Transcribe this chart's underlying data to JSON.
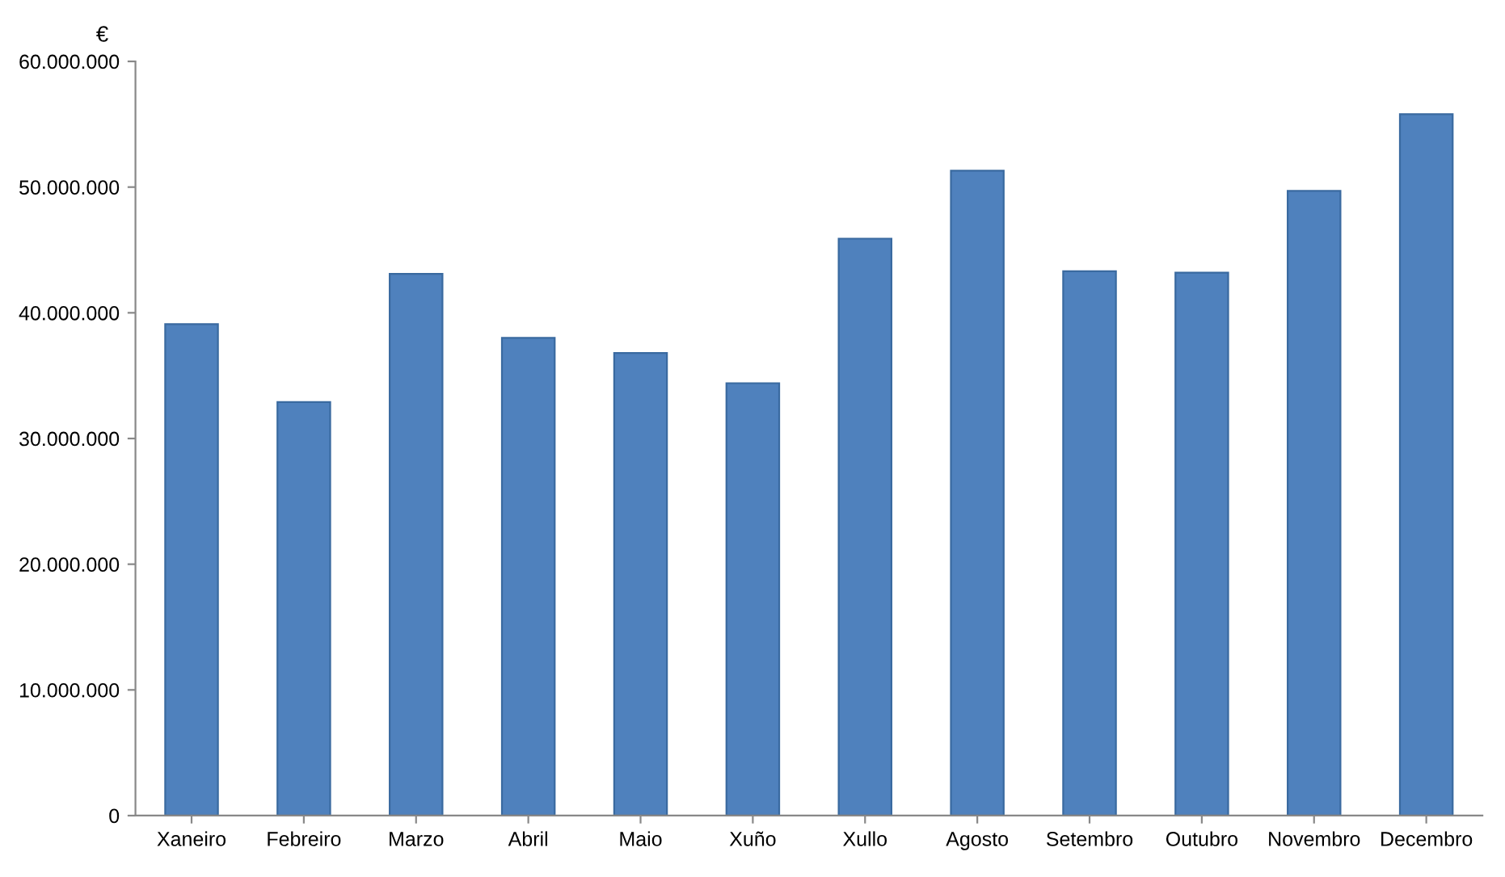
{
  "chart_data": {
    "type": "bar",
    "ylabel": "€",
    "categories": [
      "Xaneiro",
      "Febreiro",
      "Marzo",
      "Abril",
      "Maio",
      "Xuño",
      "Xullo",
      "Agosto",
      "Setembro",
      "Outubro",
      "Novembro",
      "Decembro"
    ],
    "values": [
      39100000,
      32900000,
      43100000,
      38000000,
      36800000,
      34400000,
      45900000,
      51300000,
      43300000,
      43200000,
      49700000,
      55800000
    ],
    "color": "#4f81bd",
    "ylim": [
      0,
      60000000
    ],
    "yticks": [
      {
        "value": 0,
        "label": "0"
      },
      {
        "value": 10000000,
        "label": "10.000.000"
      },
      {
        "value": 20000000,
        "label": "20.000.000"
      },
      {
        "value": 30000000,
        "label": "30.000.000"
      },
      {
        "value": 40000000,
        "label": "40.000.000"
      },
      {
        "value": 50000000,
        "label": "50.000.000"
      },
      {
        "value": 60000000,
        "label": "60.000.000"
      }
    ],
    "grid": false
  }
}
